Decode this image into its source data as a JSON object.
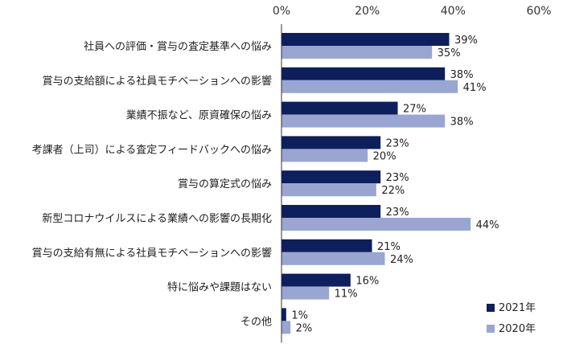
{
  "colors": {
    "series_2021": "#0d1f5c",
    "series_2020": "#99a6d1",
    "axis": "#333333",
    "text": "#222222"
  },
  "chart_data": {
    "type": "bar",
    "orientation": "horizontal",
    "categories": [
      "社員への評価・賞与の査定基準への悩み",
      "賞与の支給額による社員モチベーションへの影響",
      "業績不振など、原資確保の悩み",
      "考課者（上司）による査定フィードバックへの悩み",
      "賞与の算定式の悩み",
      "新型コロナウイルスによる業績への影響の長期化",
      "賞与の支給有無による社員モチベーションへの影響",
      "特に悩みや課題はない",
      "その他"
    ],
    "series": [
      {
        "name": "2021年",
        "values": [
          39,
          38,
          27,
          23,
          23,
          23,
          21,
          16,
          1
        ]
      },
      {
        "name": "2020年",
        "values": [
          35,
          41,
          38,
          20,
          22,
          44,
          24,
          11,
          2
        ]
      }
    ],
    "x_ticks": [
      "0%",
      "20%",
      "40%",
      "60%"
    ],
    "xlim": [
      0,
      60
    ],
    "axis_position": "top",
    "grid": false,
    "legend_position": "bottom-right",
    "value_suffix": "%"
  }
}
